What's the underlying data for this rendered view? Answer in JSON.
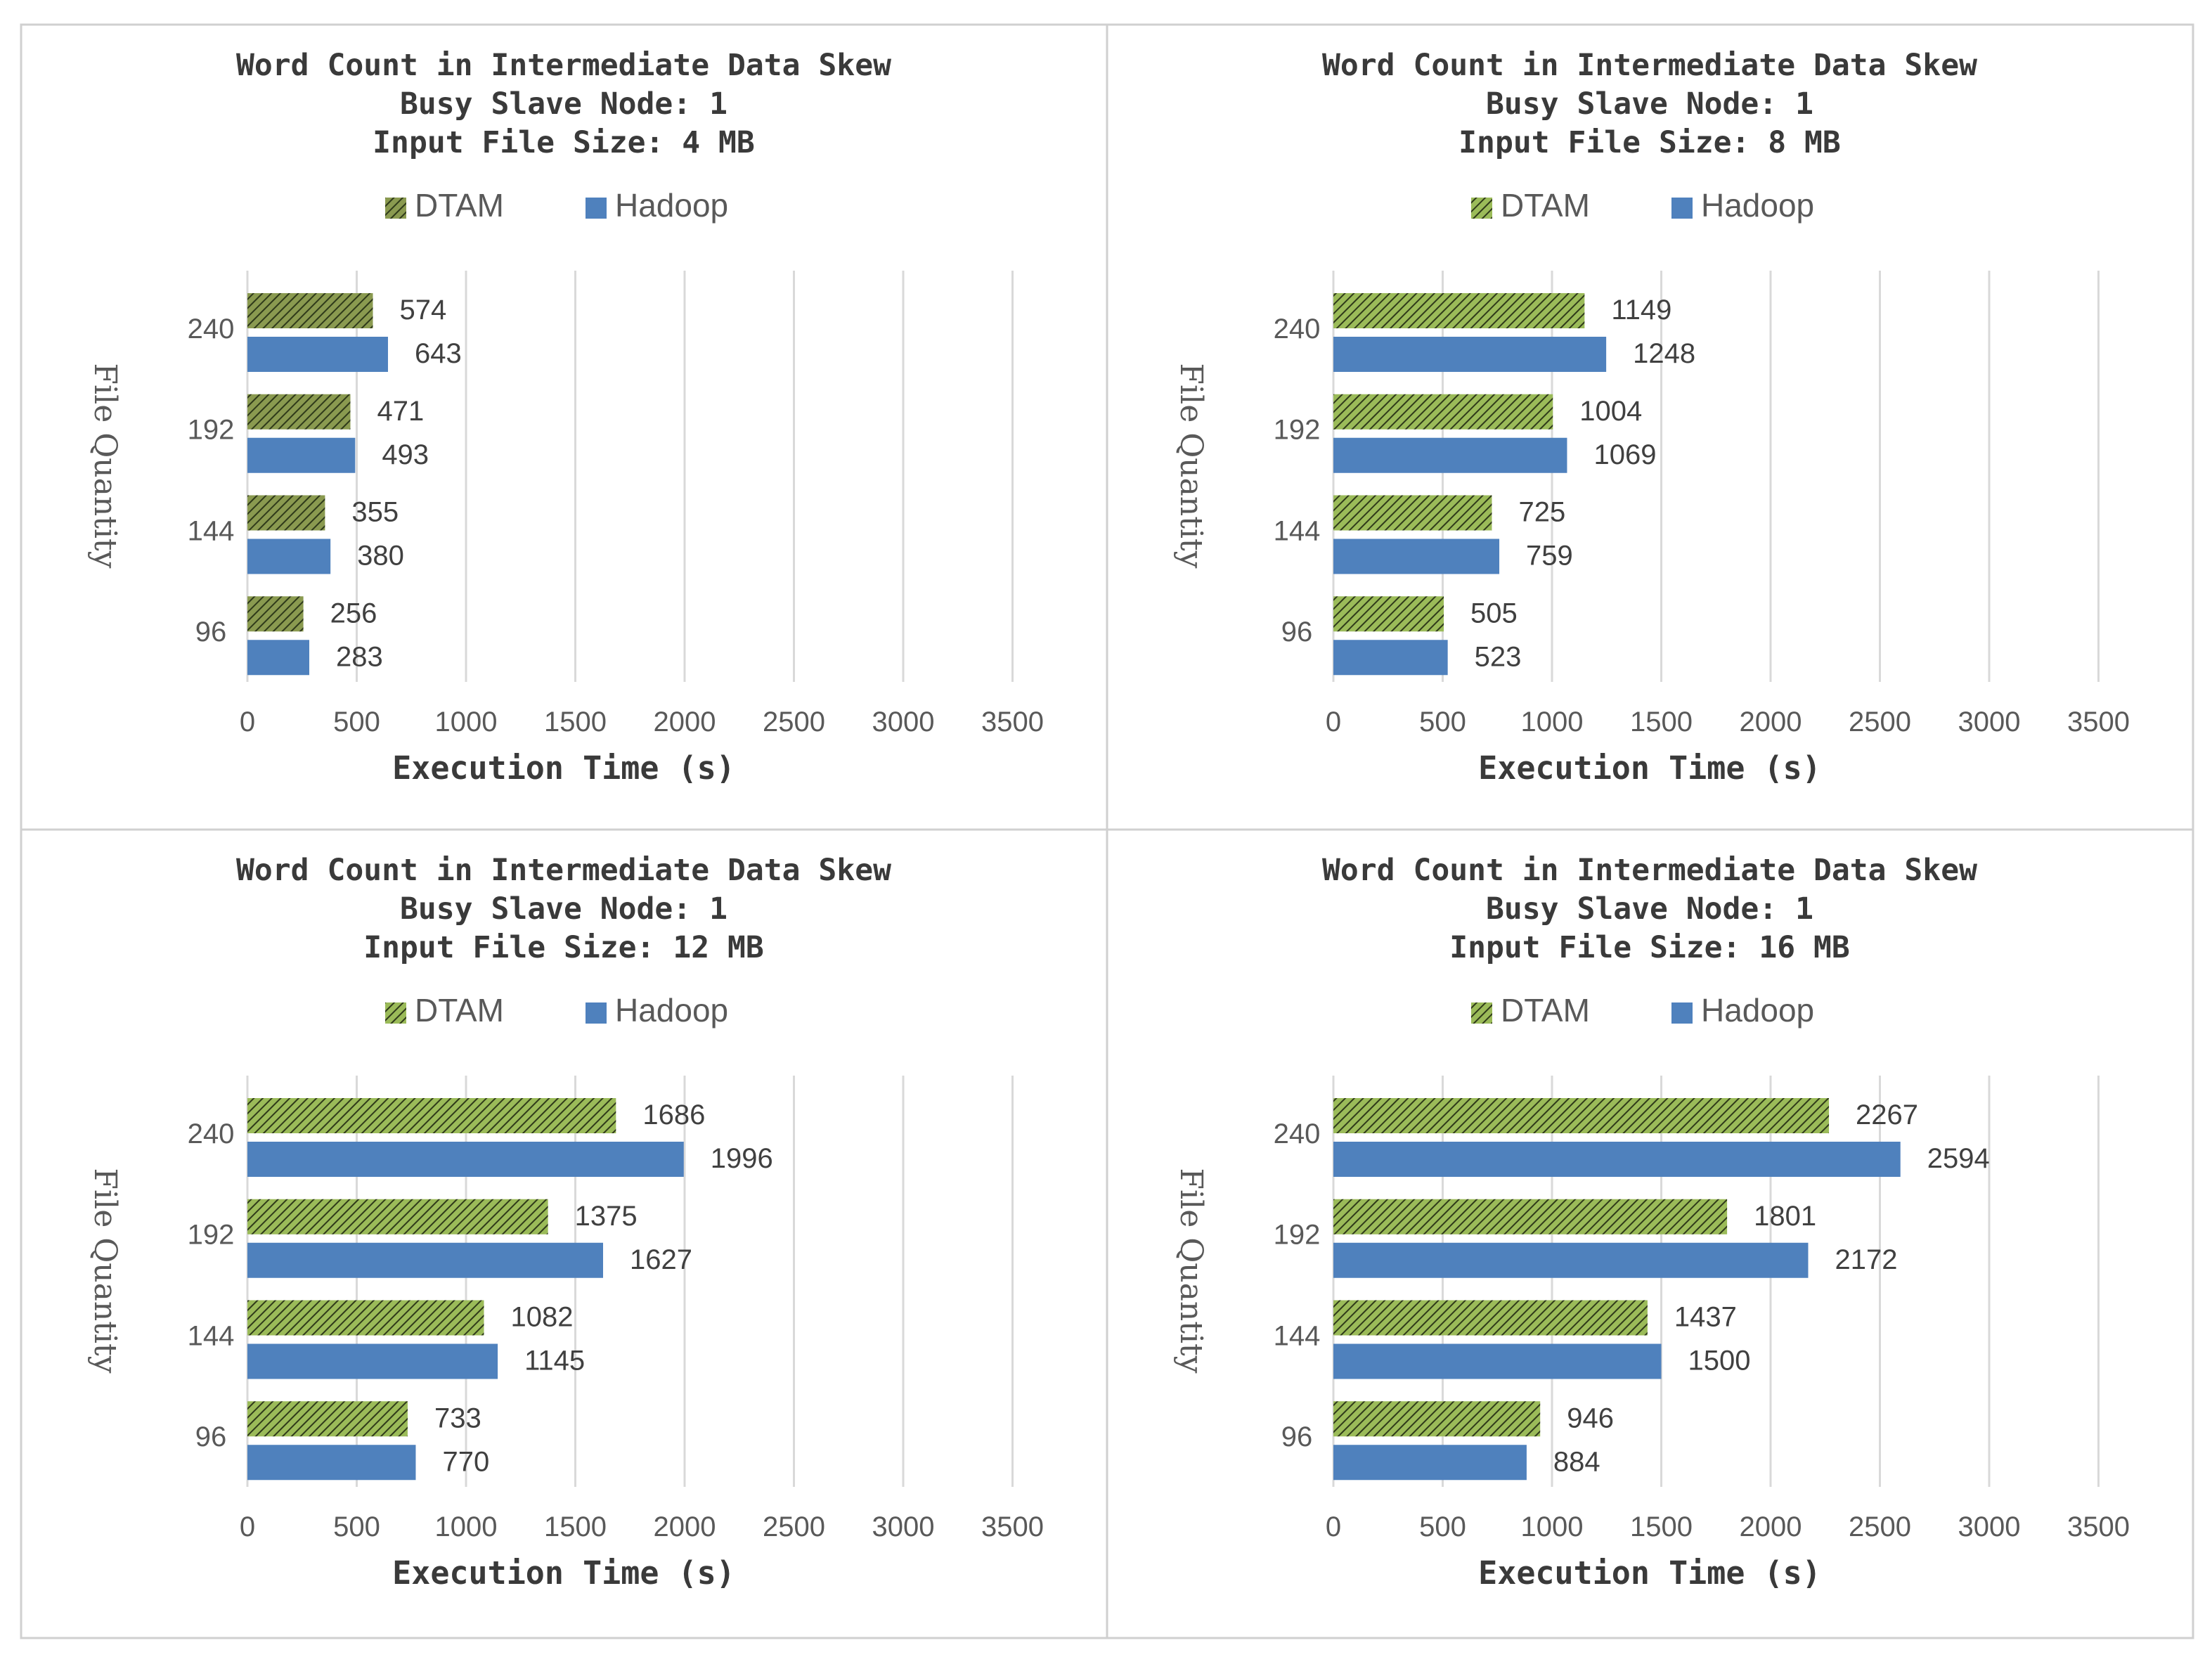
{
  "colors": {
    "dtam_fill": "#9bbb59",
    "dtam_hatch": "#2f3a1a",
    "dtam_fill_dark": "#8a9a50",
    "hadoop": "#4f81bd",
    "grid": "#d9d9d9",
    "border": "#d0d0d0"
  },
  "chart_data": [
    {
      "type": "bar",
      "orientation": "horizontal",
      "title": [
        "Word Count in Intermediate Data Skew",
        "Busy Slave Node: 1",
        "Input File Size: 4 MB"
      ],
      "categories": [
        "96",
        "144",
        "192",
        "240"
      ],
      "series": [
        {
          "name": "DTAM",
          "values": [
            256,
            355,
            471,
            574
          ]
        },
        {
          "name": "Hadoop",
          "values": [
            283,
            380,
            493,
            643
          ]
        }
      ],
      "xlabel": "Execution Time (s)",
      "ylabel": "File Quantity",
      "xlim": [
        0,
        3500
      ],
      "xticks": [
        "0",
        "500",
        "1000",
        "1500",
        "2000",
        "2500",
        "3000",
        "3500"
      ],
      "legend": "top-center",
      "grid": true
    },
    {
      "type": "bar",
      "orientation": "horizontal",
      "title": [
        "Word Count in Intermediate Data Skew",
        "Busy Slave Node: 1",
        "Input File Size: 8 MB"
      ],
      "categories": [
        "96",
        "144",
        "192",
        "240"
      ],
      "series": [
        {
          "name": "DTAM",
          "values": [
            505,
            725,
            1004,
            1149
          ]
        },
        {
          "name": "Hadoop",
          "values": [
            523,
            759,
            1069,
            1248
          ]
        }
      ],
      "xlabel": "Execution Time (s)",
      "ylabel": "File Quantity",
      "xlim": [
        0,
        3500
      ],
      "xticks": [
        "0",
        "500",
        "1000",
        "1500",
        "2000",
        "2500",
        "3000",
        "3500"
      ],
      "legend": "top-center",
      "grid": true
    },
    {
      "type": "bar",
      "orientation": "horizontal",
      "title": [
        "Word Count in Intermediate Data Skew",
        "Busy Slave Node: 1",
        "Input File Size: 12 MB"
      ],
      "categories": [
        "96",
        "144",
        "192",
        "240"
      ],
      "series": [
        {
          "name": "DTAM",
          "values": [
            733,
            1082,
            1375,
            1686
          ]
        },
        {
          "name": "Hadoop",
          "values": [
            770,
            1145,
            1627,
            1996
          ]
        }
      ],
      "xlabel": "Execution Time (s)",
      "ylabel": "File Quantity",
      "xlim": [
        0,
        3500
      ],
      "xticks": [
        "0",
        "500",
        "1000",
        "1500",
        "2000",
        "2500",
        "3000",
        "3500"
      ],
      "legend": "top-center",
      "grid": true
    },
    {
      "type": "bar",
      "orientation": "horizontal",
      "title": [
        "Word Count in Intermediate Data Skew",
        "Busy Slave Node: 1",
        "Input File Size: 16 MB"
      ],
      "categories": [
        "96",
        "144",
        "192",
        "240"
      ],
      "series": [
        {
          "name": "DTAM",
          "values": [
            946,
            1437,
            1801,
            2267
          ]
        },
        {
          "name": "Hadoop",
          "values": [
            884,
            1500,
            2172,
            2594
          ]
        }
      ],
      "xlabel": "Execution Time (s)",
      "ylabel": "File Quantity",
      "xlim": [
        0,
        3500
      ],
      "xticks": [
        "0",
        "500",
        "1000",
        "1500",
        "2000",
        "2500",
        "3000",
        "3500"
      ],
      "legend": "top-center",
      "grid": true
    }
  ]
}
